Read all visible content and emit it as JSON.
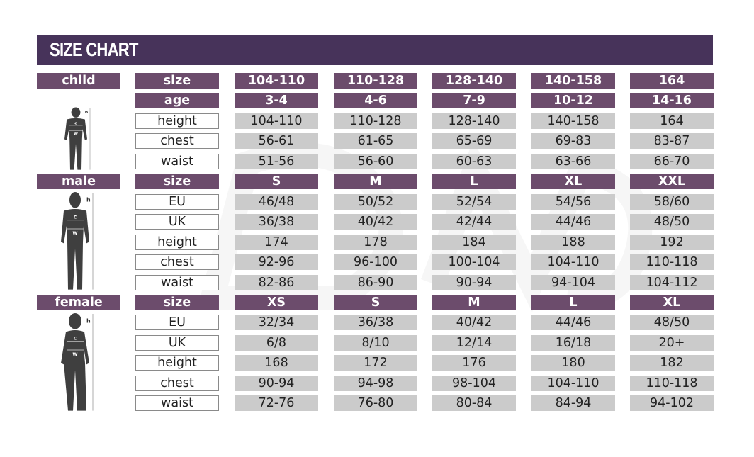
{
  "title": "SIZE CHART",
  "colors": {
    "header": "#47335a",
    "label": "#6c4c6c",
    "cell": "#cbcbcb",
    "figure": "#3f3f3f"
  },
  "sections": [
    {
      "label": "child",
      "figure_icon": "child-silhouette-icon",
      "rows": [
        {
          "label": "size",
          "style": "purple",
          "values": [
            "104-110",
            "110-128",
            "128-140",
            "140-158",
            "164"
          ]
        },
        {
          "label": "age",
          "style": "purple",
          "values": [
            "3-4",
            "4-6",
            "7-9",
            "10-12",
            "14-16"
          ]
        },
        {
          "label": "height",
          "style": "gray",
          "values": [
            "104-110",
            "110-128",
            "128-140",
            "140-158",
            "164"
          ]
        },
        {
          "label": "chest",
          "style": "gray",
          "values": [
            "56-61",
            "61-65",
            "65-69",
            "69-83",
            "83-87"
          ]
        },
        {
          "label": "waist",
          "style": "gray",
          "values": [
            "51-56",
            "56-60",
            "60-63",
            "63-66",
            "66-70"
          ]
        }
      ]
    },
    {
      "label": "male",
      "figure_icon": "male-silhouette-icon",
      "rows": [
        {
          "label": "size",
          "style": "purple",
          "values": [
            "S",
            "M",
            "L",
            "XL",
            "XXL"
          ]
        },
        {
          "label": "EU",
          "style": "gray",
          "values": [
            "46/48",
            "50/52",
            "52/54",
            "54/56",
            "58/60"
          ]
        },
        {
          "label": "UK",
          "style": "gray",
          "values": [
            "36/38",
            "40/42",
            "42/44",
            "44/46",
            "48/50"
          ]
        },
        {
          "label": "height",
          "style": "gray",
          "values": [
            "174",
            "178",
            "184",
            "188",
            "192"
          ]
        },
        {
          "label": "chest",
          "style": "gray",
          "values": [
            "92-96",
            "96-100",
            "100-104",
            "104-110",
            "110-118"
          ]
        },
        {
          "label": "waist",
          "style": "gray",
          "values": [
            "82-86",
            "86-90",
            "90-94",
            "94-104",
            "104-112"
          ]
        }
      ]
    },
    {
      "label": "female",
      "figure_icon": "female-silhouette-icon",
      "rows": [
        {
          "label": "size",
          "style": "purple",
          "values": [
            "XS",
            "S",
            "M",
            "L",
            "XL"
          ]
        },
        {
          "label": "EU",
          "style": "gray",
          "values": [
            "32/34",
            "36/38",
            "40/42",
            "44/46",
            "48/50"
          ]
        },
        {
          "label": "UK",
          "style": "gray",
          "values": [
            "6/8",
            "8/10",
            "12/14",
            "16/18",
            "20+"
          ]
        },
        {
          "label": "height",
          "style": "gray",
          "values": [
            "168",
            "172",
            "176",
            "180",
            "182"
          ]
        },
        {
          "label": "chest",
          "style": "gray",
          "values": [
            "90-94",
            "94-98",
            "98-104",
            "104-110",
            "110-118"
          ]
        },
        {
          "label": "waist",
          "style": "gray",
          "values": [
            "72-76",
            "76-80",
            "80-84",
            "84-94",
            "94-102"
          ]
        }
      ]
    }
  ],
  "figure_marks": {
    "h": "h",
    "c": "c",
    "w": "w"
  }
}
